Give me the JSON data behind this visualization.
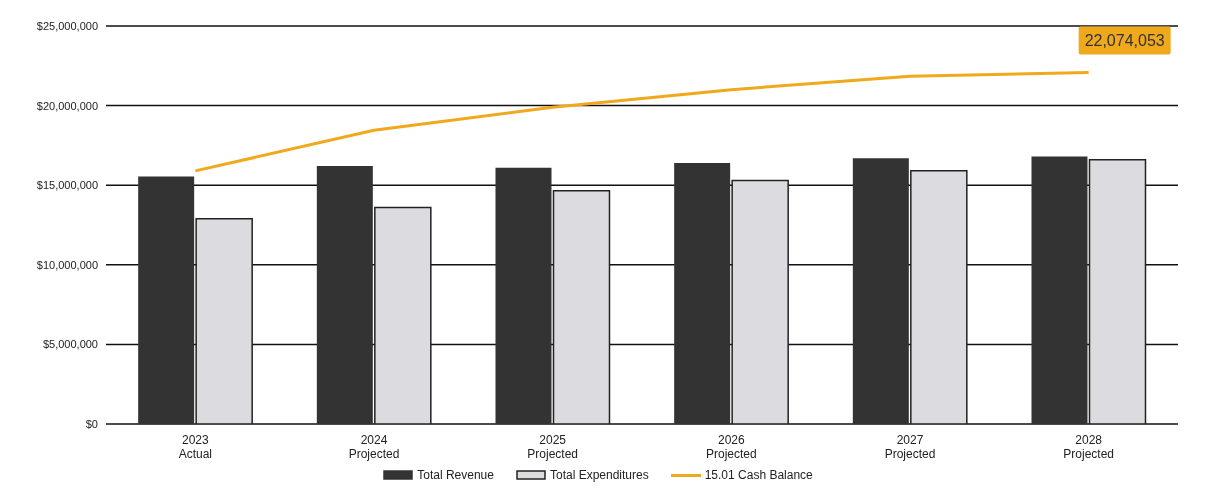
{
  "chart_data": {
    "type": "bar",
    "categories": [
      "2023 Actual",
      "2024 Projected",
      "2025 Projected",
      "2026 Projected",
      "2027 Projected",
      "2028 Projected"
    ],
    "series": [
      {
        "name": "Total Revenue",
        "color": "#333333",
        "values": [
          15550000,
          16200000,
          16100000,
          16400000,
          16700000,
          16800000
        ]
      },
      {
        "name": "Total Expenditures",
        "color": "#dcdce0",
        "values": [
          12900000,
          13600000,
          14650000,
          15300000,
          15900000,
          16600000
        ]
      },
      {
        "name": "15.01 Cash Balance",
        "type": "line",
        "color": "#f0a81c",
        "values": [
          15900000,
          18450000,
          19900000,
          21000000,
          21850000,
          22074053
        ]
      }
    ],
    "ylim": [
      0,
      25000000
    ],
    "yticks": [
      {
        "value": 0,
        "label": "$0"
      },
      {
        "value": 5000000,
        "label": "$5,000,000"
      },
      {
        "value": 10000000,
        "label": "$10,000,000"
      },
      {
        "value": 15000000,
        "label": "$15,000,000"
      },
      {
        "value": 20000000,
        "label": "$20,000,000"
      },
      {
        "value": 25000000,
        "label": "$25,000,000"
      }
    ],
    "grid": "y",
    "legend": "bottom",
    "annotations": [
      {
        "text": "22,074,053",
        "x": "2028 Projected",
        "y": 22074053
      }
    ]
  }
}
